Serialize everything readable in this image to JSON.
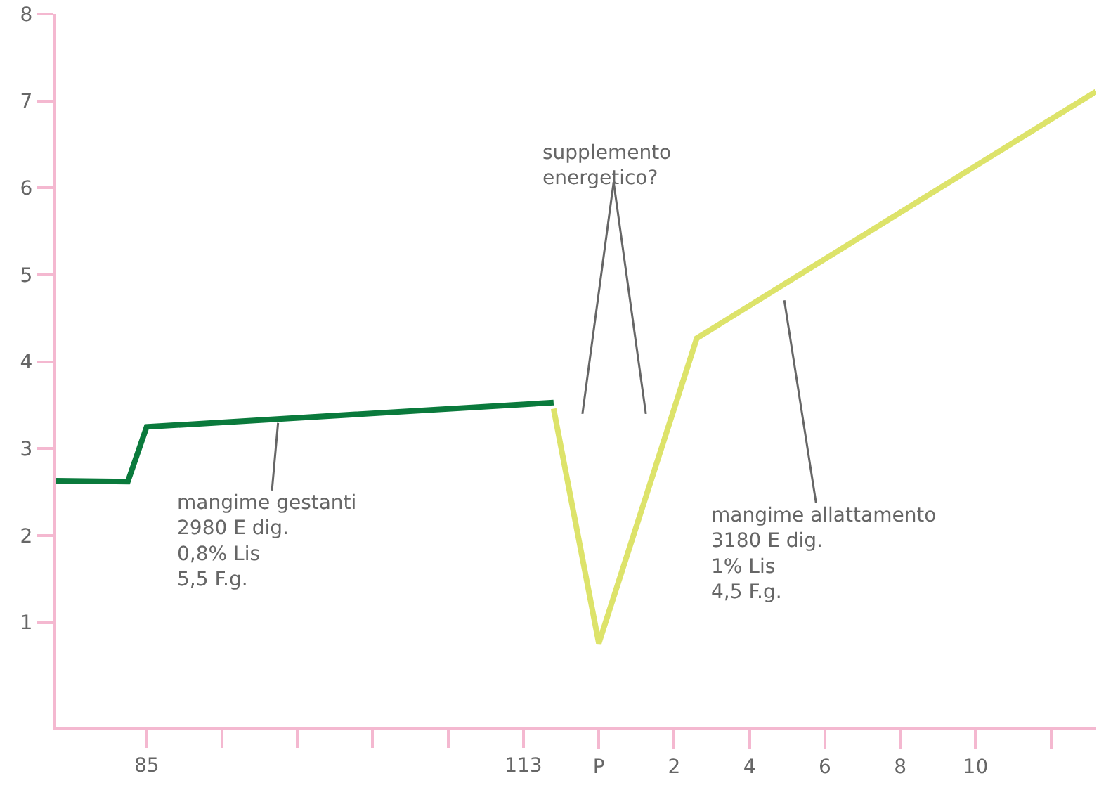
{
  "chart_data": {
    "type": "line",
    "series": [
      {
        "color": "#0a7a3c",
        "x": [
          -14.4,
          -12.5,
          -12,
          -1.2
        ],
        "values": [
          2.63,
          2.62,
          3.25,
          3.53
        ]
      },
      {
        "color": "#dde36a",
        "x": [
          -1.2,
          0,
          2.6,
          13.2
        ],
        "values": [
          3.46,
          0.76,
          4.27,
          7.11
        ]
      }
    ],
    "xlim": [
      -14.4,
      13.2
    ],
    "xticks": [
      {
        "value": 0,
        "label": "P"
      },
      2,
      4,
      6,
      8,
      10,
      {
        "value": 12,
        "label": null
      }
    ],
    "x2lim": [
      78.28,
      155.56
    ],
    "x2ticks": [
      85,
      {
        "value": 90.6,
        "label": null
      },
      {
        "value": 96.2,
        "label": null
      },
      {
        "value": 101.8,
        "label": null
      },
      {
        "value": 107.4,
        "label": null
      },
      113
    ],
    "ylim": [
      -0.2,
      8
    ],
    "yticks": [
      1,
      2,
      3,
      4,
      5,
      6,
      7,
      8
    ],
    "annotations": [
      {
        "text": "mangime gestanti\n2980 E dig.\n0,8% Lis\n5,5 F.g.",
        "x": -8.5,
        "y": 3.36
      },
      "supplemento\nenergetico?",
      {
        "text": "mangime allattamento\n3180 E dig.\n1% Lis\n4,5 F.g.",
        "x": 4.9,
        "y": 4.77
      }
    ],
    "marker": "none",
    "line_style": "solid"
  }
}
